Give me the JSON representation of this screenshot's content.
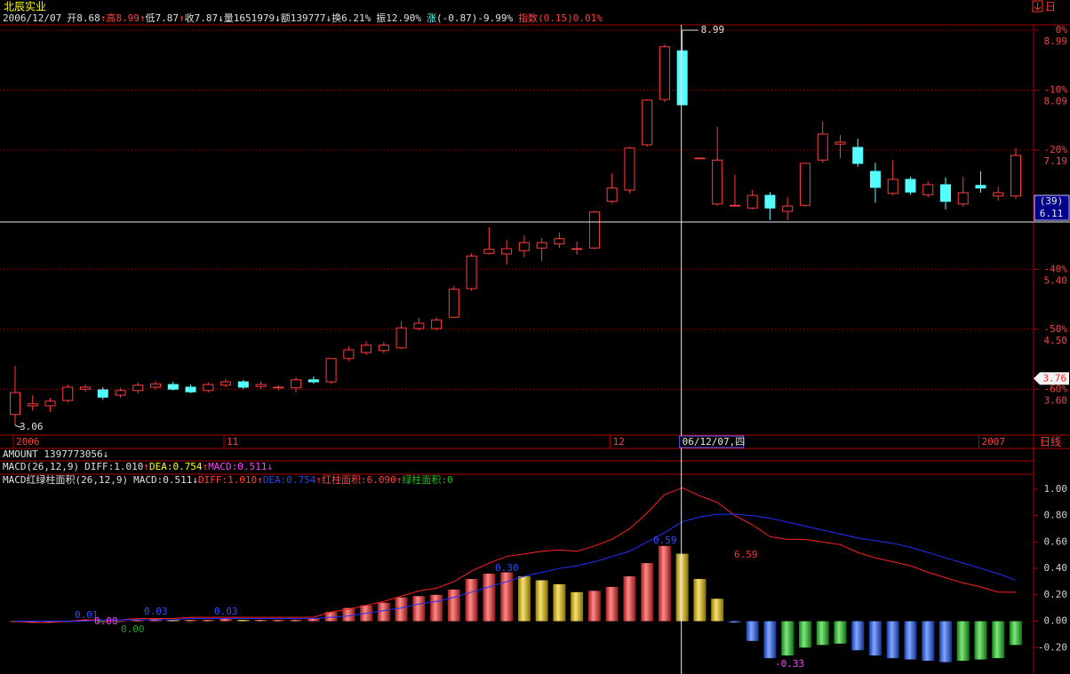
{
  "stock_name": "北辰实业",
  "period_icon_label": "日",
  "quote_line": [
    {
      "text": "2006/12/07",
      "color": "#e0e0e0"
    },
    {
      "text": "开8.68",
      "color": "#e0e0e0"
    },
    {
      "text": "↑",
      "color": "#ff4040"
    },
    {
      "text": "高8.99",
      "color": "#ff4040"
    },
    {
      "text": "↑",
      "color": "#ff4040"
    },
    {
      "text": "低7.87",
      "color": "#e0e0e0"
    },
    {
      "text": "↑",
      "color": "#ff4040"
    },
    {
      "text": "收7.87",
      "color": "#e0e0e0"
    },
    {
      "text": "↓",
      "color": "#e0e0e0"
    },
    {
      "text": "量1651979",
      "color": "#e0e0e0"
    },
    {
      "text": "↓",
      "color": "#e0e0e0"
    },
    {
      "text": "额139777",
      "color": "#e0e0e0"
    },
    {
      "text": "↓",
      "color": "#e0e0e0"
    },
    {
      "text": "换6.21%",
      "color": "#e0e0e0"
    },
    {
      "text": "振12.90%",
      "color": "#e0e0e0"
    },
    {
      "text": "涨",
      "color": "#54ffff"
    },
    {
      "text": "(-0.87)-9.99%",
      "color": "#e0e0e0"
    },
    {
      "text": "指数",
      "color": "#ff4040"
    },
    {
      "text": "(0.15)0.01%",
      "color": "#ff4040"
    }
  ],
  "amount_line": "AMOUNT 1397773056↓",
  "chart_data": [
    {
      "type": "candlestick",
      "categories": [
        "2006",
        null,
        null,
        null,
        null,
        null,
        null,
        null,
        null,
        null,
        null,
        null,
        "11",
        null,
        null,
        null,
        null,
        null,
        null,
        null,
        null,
        null,
        null,
        null,
        null,
        null,
        null,
        null,
        null,
        null,
        null,
        null,
        null,
        null,
        "12",
        null,
        null,
        null,
        null,
        null,
        null,
        null,
        null,
        null,
        null,
        null,
        null,
        null,
        null,
        null,
        null,
        null,
        null,
        null,
        null,
        "2007",
        null,
        null
      ],
      "open": [
        3.22,
        3.35,
        3.35,
        3.43,
        3.6,
        3.59,
        3.51,
        3.58,
        3.63,
        3.67,
        3.63,
        3.58,
        3.66,
        3.71,
        3.64,
        3.62,
        3.62,
        3.74,
        3.71,
        4.06,
        4.15,
        4.18,
        4.22,
        4.51,
        4.51,
        4.68,
        5.11,
        5.64,
        5.63,
        5.68,
        5.72,
        5.78,
        5.7,
        5.72,
        6.42,
        6.59,
        7.27,
        7.95,
        8.68,
        7.07,
        6.38,
        6.35,
        6.32,
        6.51,
        6.27,
        6.36,
        7.04,
        7.28,
        7.23,
        6.87,
        6.54,
        6.75,
        6.52,
        6.67,
        6.38,
        6.66,
        6.5,
        6.5
      ],
      "high": [
        3.95,
        3.51,
        3.47,
        3.67,
        3.67,
        3.63,
        3.62,
        3.7,
        3.72,
        3.71,
        3.67,
        3.7,
        3.75,
        3.74,
        3.72,
        3.66,
        3.78,
        3.79,
        4.07,
        4.24,
        4.32,
        4.31,
        4.62,
        4.67,
        4.68,
        5.15,
        5.64,
        6.03,
        5.84,
        5.91,
        5.87,
        5.95,
        5.82,
        6.28,
        6.84,
        7.24,
        7.95,
        8.78,
        8.99,
        7.07,
        7.54,
        6.82,
        6.59,
        6.56,
        6.48,
        7.0,
        7.62,
        7.42,
        7.36,
        7.0,
        7.04,
        6.79,
        6.72,
        6.78,
        6.79,
        6.87,
        6.64,
        7.22
      ],
      "low": [
        3.06,
        3.28,
        3.26,
        3.4,
        3.56,
        3.44,
        3.47,
        3.54,
        3.6,
        3.58,
        3.54,
        3.55,
        3.63,
        3.6,
        3.6,
        3.58,
        3.55,
        3.68,
        3.68,
        4.02,
        4.11,
        4.14,
        4.2,
        4.48,
        4.48,
        4.67,
        5.08,
        5.62,
        5.47,
        5.58,
        5.52,
        5.72,
        5.62,
        5.7,
        6.39,
        6.54,
        7.24,
        7.91,
        7.87,
        7.07,
        6.35,
        6.34,
        6.3,
        6.14,
        6.14,
        6.34,
        7.0,
        7.07,
        6.94,
        6.4,
        6.51,
        6.52,
        6.48,
        6.3,
        6.34,
        6.55,
        6.43,
        6.46
      ],
      "close": [
        3.55,
        3.38,
        3.42,
        3.63,
        3.63,
        3.48,
        3.58,
        3.66,
        3.68,
        3.6,
        3.56,
        3.67,
        3.71,
        3.63,
        3.67,
        3.63,
        3.74,
        3.71,
        4.06,
        4.19,
        4.26,
        4.26,
        4.52,
        4.59,
        4.64,
        5.1,
        5.6,
        5.7,
        5.71,
        5.8,
        5.8,
        5.86,
        5.71,
        6.26,
        6.62,
        7.22,
        7.94,
        8.74,
        7.87,
        7.07,
        7.04,
        6.36,
        6.51,
        6.32,
        6.35,
        6.99,
        7.43,
        7.31,
        6.99,
        6.63,
        6.75,
        6.56,
        6.67,
        6.42,
        6.55,
        6.62,
        6.55,
        7.11
      ],
      "up_color": "#ff3c3c",
      "down_color": "#54ffff",
      "ylim": [
        2.91,
        9.07
      ],
      "yticks": [
        8.99,
        8.09,
        7.19,
        {
          "value": 5.4,
          "label": "5.40"
        },
        {
          "value": 4.5,
          "label": "4.50"
        },
        {
          "value": 3.6,
          "label": "3.60"
        }
      ],
      "ytick_pct_labels": [
        "0%",
        "-10%",
        "-20%",
        "-40%",
        "-50%",
        "-60%"
      ],
      "grid": true,
      "grid_color": "#a00000",
      "cursor_count": "(39)",
      "cursor_price": 6.11,
      "cursor_date": "06/12/07,四",
      "marker_price": 3.76,
      "period_label": "日线"
    },
    {
      "type": "macd",
      "legend_lines": [
        [
          {
            "text": "MACD(26,12,9)",
            "color": "#e0e0e0"
          },
          {
            "text": "DIFF:1.010",
            "color": "#e0e0e0"
          },
          {
            "text": "↑",
            "color": "#ff4040"
          },
          {
            "text": "DEA:0.754",
            "color": "#ffff00"
          },
          {
            "text": "↑",
            "color": "#ff4040"
          },
          {
            "text": "MACD:0.511",
            "color": "#ff40ff"
          },
          {
            "text": "↓",
            "color": "#ff40ff"
          }
        ],
        [
          {
            "text": "MACD红绿柱面积(26,12,9)",
            "color": "#e0e0e0"
          },
          {
            "text": "MACD:0.511",
            "color": "#e0e0e0"
          },
          {
            "text": "↓",
            "color": "#e0e0e0"
          },
          {
            "text": "DIFF:1.010",
            "color": "#ff4040"
          },
          {
            "text": "↑",
            "color": "#ff4040"
          },
          {
            "text": "DEA:0.754",
            "color": "#2848ff"
          },
          {
            "text": "↑",
            "color": "#ff4040"
          },
          {
            "text": "红柱面积:6.090",
            "color": "#ff4040"
          },
          {
            "text": "↑",
            "color": "#ff4040"
          },
          {
            "text": "绿柱面积:0",
            "color": "#20c020"
          }
        ]
      ],
      "values": [
        0.0,
        -0.01,
        -0.01,
        0.0,
        0.01,
        0.0,
        0.0,
        0.01,
        0.02,
        0.01,
        0.01,
        0.01,
        0.02,
        0.01,
        0.01,
        0.01,
        0.01,
        0.02,
        0.07,
        0.1,
        0.12,
        0.14,
        0.18,
        0.19,
        0.2,
        0.24,
        0.32,
        0.36,
        0.37,
        0.34,
        0.31,
        0.28,
        0.22,
        0.23,
        0.26,
        0.34,
        0.44,
        0.57,
        0.511,
        0.32,
        0.17,
        -0.01,
        -0.15,
        -0.28,
        -0.26,
        -0.2,
        -0.18,
        -0.17,
        -0.22,
        -0.26,
        -0.28,
        -0.29,
        -0.3,
        -0.31,
        -0.3,
        -0.29,
        -0.28,
        -0.18
      ],
      "bar_colors": {
        "rising_positive": "#ff2a2a",
        "falling_positive": "#f0c800",
        "falling_negative": "#1e5cff",
        "rising_negative": "#18d018"
      },
      "series": [
        {
          "color": "#ff2020",
          "values": [
            0.0,
            -0.01,
            -0.01,
            0.0,
            0.01,
            0.01,
            0.01,
            0.02,
            0.02,
            0.02,
            0.03,
            0.03,
            0.03,
            0.03,
            0.03,
            0.03,
            0.03,
            0.03,
            0.07,
            0.09,
            0.12,
            0.15,
            0.19,
            0.23,
            0.25,
            0.3,
            0.38,
            0.44,
            0.49,
            0.51,
            0.53,
            0.54,
            0.53,
            0.57,
            0.62,
            0.7,
            0.82,
            0.96,
            1.01,
            0.95,
            0.9,
            0.8,
            0.73,
            0.64,
            0.62,
            0.62,
            0.6,
            0.58,
            0.52,
            0.48,
            0.45,
            0.42,
            0.37,
            0.33,
            0.29,
            0.26,
            0.22,
            0.22
          ]
        },
        {
          "color": "#2030ff",
          "values": [
            0.0,
            0.0,
            0.0,
            0.0,
            0.0,
            0.01,
            0.01,
            0.01,
            0.01,
            0.01,
            0.02,
            0.02,
            0.02,
            0.02,
            0.02,
            0.02,
            0.02,
            0.02,
            0.03,
            0.04,
            0.06,
            0.08,
            0.1,
            0.13,
            0.15,
            0.18,
            0.22,
            0.26,
            0.3,
            0.34,
            0.37,
            0.4,
            0.42,
            0.45,
            0.49,
            0.53,
            0.6,
            0.67,
            0.754,
            0.79,
            0.81,
            0.81,
            0.8,
            0.78,
            0.75,
            0.72,
            0.69,
            0.66,
            0.63,
            0.61,
            0.59,
            0.56,
            0.52,
            0.48,
            0.44,
            0.4,
            0.36,
            0.31
          ]
        }
      ],
      "annotations": [
        {
          "text": "0.01",
          "color": "#3050ff"
        },
        {
          "text": "0.00",
          "color": "#ff40ff"
        },
        {
          "text": "0.00",
          "color": "#20a020"
        },
        {
          "text": "0.03",
          "color": "#3050ff"
        },
        {
          "text": "0.03",
          "color": "#3050ff"
        },
        {
          "text": "0.30",
          "color": "#3050ff"
        },
        {
          "text": "0.59",
          "color": "#3050ff"
        },
        {
          "text": "6.59",
          "color": "#ff3030"
        },
        {
          "text": "-0.33",
          "color": "#ff40ff"
        }
      ],
      "ylim": [
        -0.4,
        1.1
      ],
      "yticks": [
        {
          "value": 1,
          "label": "1.00"
        },
        {
          "value": 0.8,
          "label": "0.80"
        },
        {
          "value": 0.6,
          "label": "0.60"
        },
        {
          "value": 0.4,
          "label": "0.40"
        },
        {
          "value": 0.2,
          "label": "0.20"
        },
        {
          "value": 0,
          "label": "0.00"
        },
        {
          "value": -0.2,
          "label": "-0.20"
        }
      ]
    }
  ]
}
